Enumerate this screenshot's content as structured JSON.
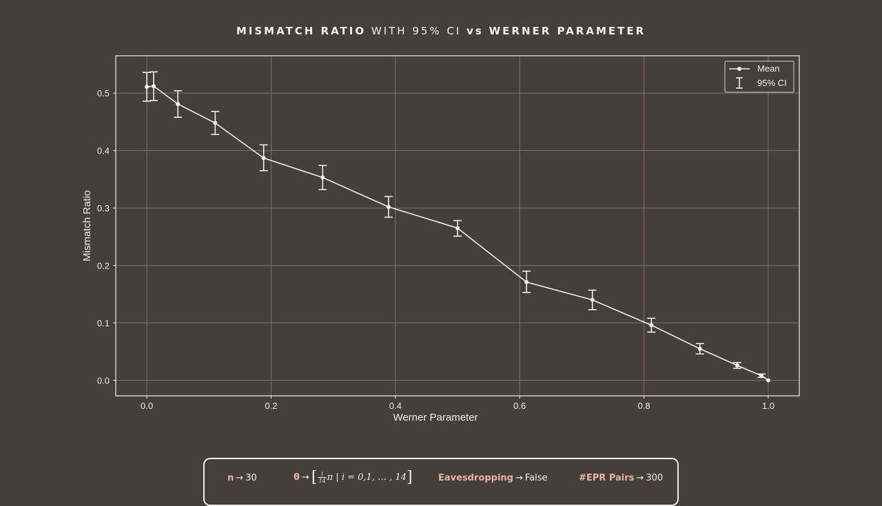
{
  "title": {
    "part1": "MISMATCH RATIO",
    "part2": "WITH 95% CI",
    "part3": "vs",
    "part4": "WERNER PARAMETER"
  },
  "chart_data": {
    "type": "line",
    "xlabel": "Werner Parameter",
    "ylabel": "Mismatch Ratio",
    "xlim": [
      -0.05,
      1.05
    ],
    "ylim": [
      -0.027,
      0.565
    ],
    "xticks": [
      "0.0",
      "0.2",
      "0.4",
      "0.6",
      "0.8",
      "1.0"
    ],
    "yticks": [
      "0.0",
      "0.1",
      "0.2",
      "0.3",
      "0.4",
      "0.5"
    ],
    "grid": true,
    "legend_position": "top-right",
    "legend": [
      "Mean",
      "95% CI"
    ],
    "series": [
      {
        "name": "Mean",
        "x": [
          0.0,
          0.011,
          0.05,
          0.11,
          0.188,
          0.283,
          0.389,
          0.5,
          0.611,
          0.717,
          0.812,
          0.89,
          0.95,
          0.989,
          1.0
        ],
        "y": [
          0.511,
          0.512,
          0.481,
          0.448,
          0.387,
          0.353,
          0.302,
          0.265,
          0.171,
          0.14,
          0.096,
          0.055,
          0.026,
          0.008,
          0.0
        ],
        "ci_low": [
          0.486,
          0.487,
          0.458,
          0.428,
          0.365,
          0.332,
          0.284,
          0.251,
          0.153,
          0.123,
          0.084,
          0.046,
          0.021,
          0.005,
          0.0
        ],
        "ci_high": [
          0.536,
          0.537,
          0.504,
          0.468,
          0.41,
          0.374,
          0.32,
          0.278,
          0.19,
          0.157,
          0.108,
          0.064,
          0.031,
          0.011,
          0.0
        ]
      }
    ]
  },
  "params": {
    "n_key": "n",
    "n_value": "30",
    "theta_key": "θ",
    "theta_frac_num": "i",
    "theta_frac_den": "14",
    "theta_rest": "π | i = 0,1, … , 14",
    "eaves_key": "Eavesdropping",
    "eaves_value": "False",
    "epr_key": "#EPR Pairs",
    "epr_value": "300",
    "arrow": "→"
  },
  "colors": {
    "background": "#453e39",
    "foreground": "#f2eeea",
    "accent": "#e2b4a2",
    "grid": "#7a726d"
  }
}
